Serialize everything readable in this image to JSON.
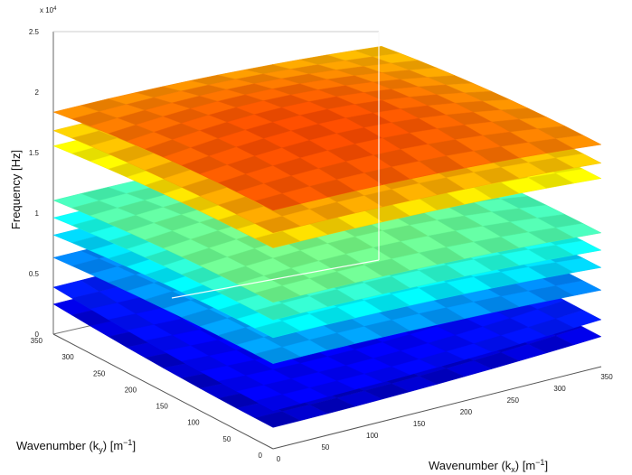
{
  "chart_data": {
    "type": "surface3d",
    "title": "",
    "zlabel": "Frequency [Hz]",
    "xlabel_main": "Wavenumber (k",
    "xlabel_sub": "x",
    "xlabel_unit": ") [m",
    "xlabel_sup": "−1",
    "xlabel_end": "]",
    "ylabel_main": "Wavenumber (k",
    "ylabel_sub": "y",
    "ylabel_unit": ") [m",
    "ylabel_sup": "−1",
    "ylabel_end": "]",
    "z_exponent": "x 10",
    "z_exponent_sup": "4",
    "z_ticks": [
      "0",
      "0.5",
      "1",
      "1.5",
      "2",
      "2.5"
    ],
    "x_ticks": [
      "0",
      "50",
      "100",
      "150",
      "200",
      "250",
      "300",
      "350"
    ],
    "y_ticks": [
      "0",
      "50",
      "100",
      "150",
      "200",
      "250",
      "300",
      "350"
    ],
    "x_range": [
      0,
      350
    ],
    "y_range": [
      0,
      350
    ],
    "z_range": [
      0,
      25000
    ],
    "grid": false,
    "colormap": "jet",
    "surfaces": [
      {
        "center": 800,
        "corner": 3200
      },
      {
        "center": 2200,
        "corner": 4600
      },
      {
        "center": 8000,
        "corner": 5600
      },
      {
        "center": 10500,
        "corner": 7200
      },
      {
        "center": 12000,
        "corner": 8600
      },
      {
        "center": 13500,
        "corner": 10000
      },
      {
        "center": 18000,
        "corner": 14500
      },
      {
        "center": 19200,
        "corner": 15800
      },
      {
        "center": 21500,
        "corner": 17000
      }
    ]
  }
}
